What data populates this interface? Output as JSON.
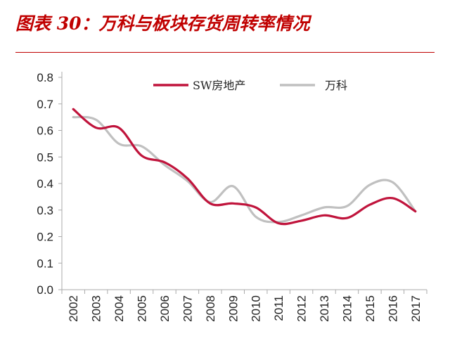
{
  "figure": {
    "title": "图表 30：万科与板块存货周转率情况"
  },
  "colors": {
    "accent": "#c00000",
    "series_1": "#c0143c",
    "series_2": "#c0c0c0",
    "axis": "#aaaaaa"
  },
  "chart_data": {
    "type": "line",
    "title": "",
    "xlabel": "",
    "ylabel": "",
    "x": [
      "2002",
      "2003",
      "2004",
      "2005",
      "2006",
      "2007",
      "2008",
      "2009",
      "2010",
      "2011",
      "2012",
      "2013",
      "2014",
      "2015",
      "2016",
      "2017"
    ],
    "ylim": [
      0,
      0.8
    ],
    "yticks": [
      "0.0",
      "0.1",
      "0.2",
      "0.3",
      "0.4",
      "0.5",
      "0.6",
      "0.7",
      "0.8"
    ],
    "grid": false,
    "legend_position": "top",
    "series": [
      {
        "name": "SW房地产",
        "color": "#c0143c",
        "values": [
          0.68,
          0.61,
          0.61,
          0.505,
          0.48,
          0.42,
          0.325,
          0.325,
          0.31,
          0.25,
          0.26,
          0.28,
          0.27,
          0.32,
          0.345,
          0.295
        ]
      },
      {
        "name": "万科",
        "color": "#c0c0c0",
        "values": [
          0.65,
          0.64,
          0.55,
          0.54,
          0.47,
          0.41,
          0.33,
          0.39,
          0.275,
          0.255,
          0.28,
          0.31,
          0.315,
          0.395,
          0.405,
          0.295
        ]
      }
    ]
  }
}
